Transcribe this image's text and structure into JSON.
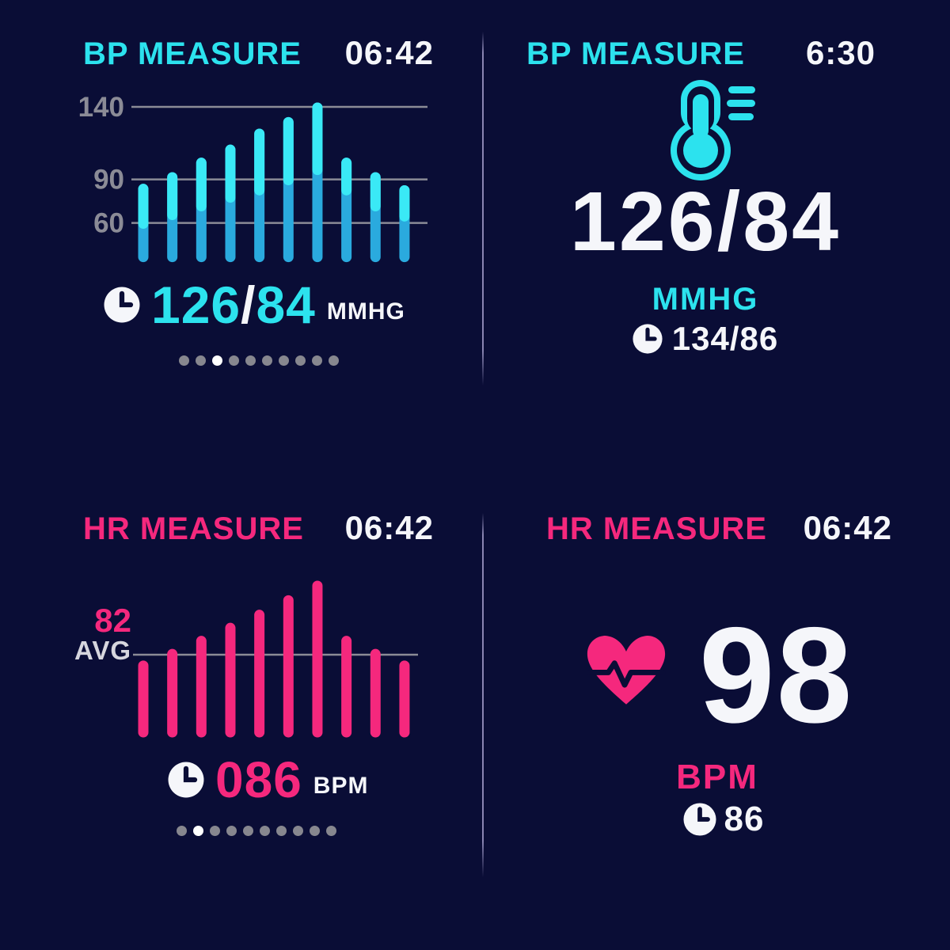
{
  "colors": {
    "background": "#0a0d36",
    "cyan": "#2ce2ee",
    "cyan_bar_top": "#3ae9f6",
    "cyan_bar_bottom": "#2aaade",
    "pink": "#f5287d",
    "white": "#f5f6fa",
    "gridline": "#8b8b96",
    "label_gray": "#d6d6de",
    "dot_inactive": "#87878f",
    "dot_active": "#ffffff",
    "divider": "#a09ac8"
  },
  "icons": {
    "clock": "clock-icon",
    "bp_monitor": "bp-monitor-icon",
    "reading_list": "reading-list-icon",
    "heart_pulse": "heart-pulse-icon"
  },
  "panels": {
    "bp_chart": {
      "title": "BP MEASURE",
      "time": "06:42",
      "reading": {
        "systolic": "126",
        "separator": "/",
        "diastolic": "84",
        "unit": "MMHG"
      },
      "pager": {
        "count": 10,
        "active_index": 2
      }
    },
    "bp_current": {
      "title": "BP MEASURE",
      "time": "6:30",
      "reading": "126/84",
      "unit": "MMHG",
      "last": "134/86"
    },
    "hr_chart": {
      "title": "HR MEASURE",
      "time": "06:42",
      "avg_value": "82",
      "avg_label": "AVG",
      "reading": {
        "value": "086",
        "unit": "BPM"
      },
      "pager": {
        "count": 10,
        "active_index": 1
      }
    },
    "hr_current": {
      "title": "HR MEASURE",
      "time": "06:42",
      "value": "98",
      "unit": "BPM",
      "last": "86"
    }
  },
  "chart_data": [
    {
      "type": "bar",
      "title": "BP MEASURE",
      "unit": "MMHG",
      "gridlines": [
        140,
        90,
        60
      ],
      "series": [
        {
          "name": "systolic",
          "values": [
            87,
            95,
            105,
            114,
            125,
            133,
            143,
            105,
            95,
            86
          ]
        },
        {
          "name": "diastolic",
          "values": [
            56,
            62,
            68,
            74,
            79,
            86,
            93,
            79,
            68,
            61
          ]
        }
      ],
      "bar_floor": 33,
      "ylim": [
        33,
        150
      ],
      "grid": true,
      "legend": false,
      "current_reading": "126/84"
    },
    {
      "type": "bar",
      "title": "HR MEASURE",
      "unit": "BPM",
      "avg_line": 82,
      "avg_label": "AVG",
      "values": [
        78,
        86,
        95,
        104,
        113,
        123,
        133,
        95,
        86,
        78
      ],
      "bar_floor": 25,
      "ylim": [
        25,
        140
      ],
      "grid": false,
      "legend": false,
      "current_reading": "086"
    }
  ]
}
